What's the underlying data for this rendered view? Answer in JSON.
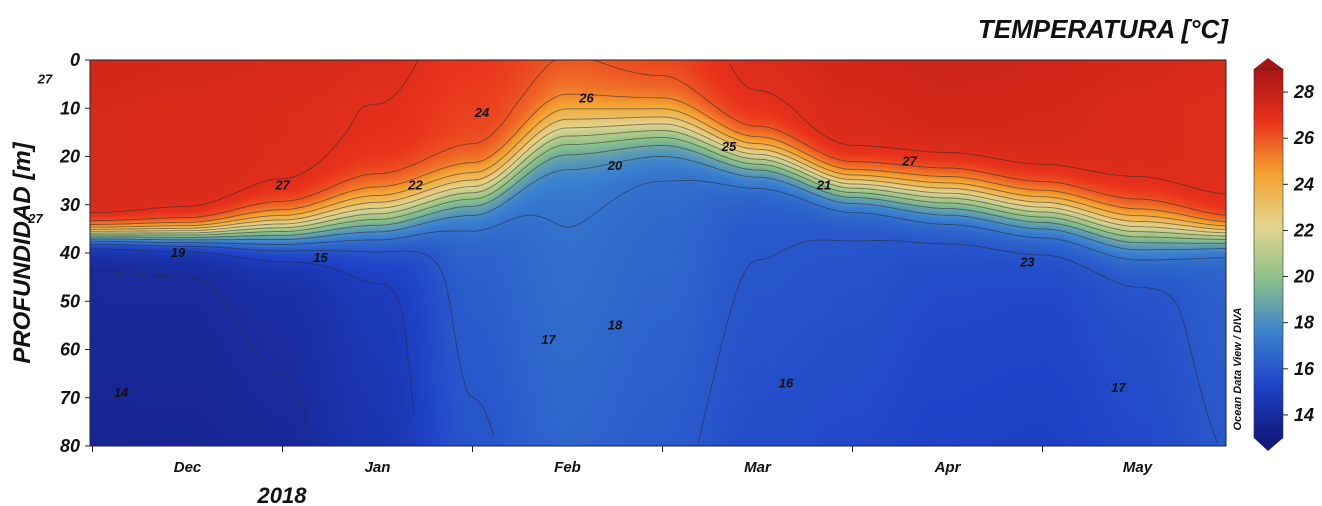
{
  "chart_data": {
    "type": "heatmap",
    "title": "TEMPERATURA [°C]",
    "ylabel": "PROFUNDIDAD [m]",
    "xlabel": "",
    "year_label": "2018",
    "watermark": "Ocean Data View / DIVA",
    "x_ticks": [
      "Dec",
      "Jan",
      "Feb",
      "Mar",
      "Apr",
      "May"
    ],
    "y_ticks": [
      0,
      10,
      20,
      30,
      40,
      50,
      60,
      70,
      80
    ],
    "ylim": [
      0,
      80
    ],
    "y_inverted": true,
    "colorbar": {
      "ticks": [
        14,
        16,
        18,
        20,
        22,
        24,
        26,
        28
      ],
      "range": [
        13,
        29
      ],
      "colors": [
        "#131a7e",
        "#1f43c8",
        "#3b82cf",
        "#8bc08a",
        "#e3d58e",
        "#f4a431",
        "#e9331c",
        "#a81414"
      ]
    },
    "x_months": [
      0,
      0.5,
      1.0,
      1.5,
      2.0,
      2.5,
      3.0,
      3.5,
      4.0,
      4.5,
      5.0,
      5.5,
      6.0
    ],
    "mld_depth_m": [
      36,
      36,
      35,
      32,
      27,
      15,
      14,
      20,
      26,
      28,
      31,
      35,
      36
    ],
    "thermocline_thickness_m": [
      5,
      6,
      10,
      14,
      13,
      15,
      13,
      11,
      10,
      12,
      12,
      12,
      7
    ],
    "surface_temp": [
      27.4,
      27.3,
      27.2,
      27.0,
      26.5,
      25.9,
      26.2,
      27.0,
      27.4,
      27.6,
      27.5,
      27.3,
      27.1
    ],
    "deep_temp": [
      14.0,
      14.0,
      14.2,
      14.8,
      16.3,
      17.0,
      16.7,
      16.1,
      15.9,
      15.6,
      15.5,
      15.8,
      16.4
    ],
    "contour_levels": [
      14,
      15,
      16,
      17,
      18,
      19,
      20,
      21,
      22,
      23,
      24,
      25,
      26,
      27
    ],
    "contour_labels": [
      {
        "text": "27",
        "x_month": -0.25,
        "depth": 4
      },
      {
        "text": "27",
        "x_month": -0.3,
        "depth": 33
      },
      {
        "text": "27",
        "x_month": 1.0,
        "depth": 26
      },
      {
        "text": "19",
        "x_month": 0.45,
        "depth": 40
      },
      {
        "text": "15",
        "x_month": 1.2,
        "depth": 41
      },
      {
        "text": "14",
        "x_month": 0.15,
        "depth": 69
      },
      {
        "text": "22",
        "x_month": 1.7,
        "depth": 26
      },
      {
        "text": "24",
        "x_month": 2.05,
        "depth": 11
      },
      {
        "text": "26",
        "x_month": 2.6,
        "depth": 8
      },
      {
        "text": "20",
        "x_month": 2.75,
        "depth": 22
      },
      {
        "text": "17",
        "x_month": 2.4,
        "depth": 58
      },
      {
        "text": "18",
        "x_month": 2.75,
        "depth": 55
      },
      {
        "text": "25",
        "x_month": 3.35,
        "depth": 18
      },
      {
        "text": "27",
        "x_month": 4.3,
        "depth": 21
      },
      {
        "text": "21",
        "x_month": 3.85,
        "depth": 26
      },
      {
        "text": "16",
        "x_month": 3.65,
        "depth": 67
      },
      {
        "text": "23",
        "x_month": 4.92,
        "depth": 42
      },
      {
        "text": "17",
        "x_month": 5.4,
        "depth": 68
      }
    ]
  }
}
